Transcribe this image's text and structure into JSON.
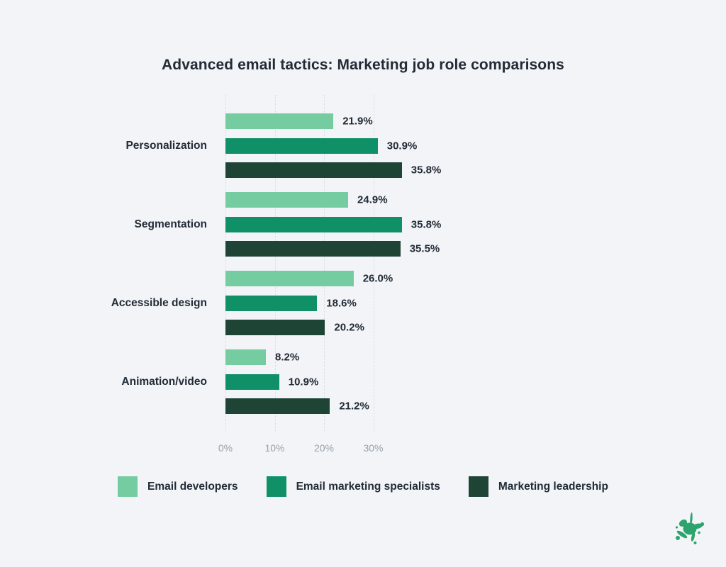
{
  "page": {
    "title": "Advanced email tactics: Marketing job role comparisons"
  },
  "chart_data": {
    "type": "bar",
    "orientation": "horizontal",
    "title": "Advanced email tactics: Marketing job role comparisons",
    "categories": [
      "Personalization",
      "Segmentation",
      "Accessible design",
      "Animation/video"
    ],
    "series": [
      {
        "name": "Email developers",
        "color": "#76cca1",
        "values": [
          21.9,
          24.9,
          26.0,
          8.2
        ]
      },
      {
        "name": "Email marketing specialists",
        "color": "#0f9066",
        "values": [
          30.9,
          35.8,
          18.6,
          10.9
        ]
      },
      {
        "name": "Marketing leadership",
        "color": "#1d4435",
        "values": [
          35.8,
          35.5,
          20.2,
          21.2
        ]
      }
    ],
    "value_labels": [
      [
        "21.9%",
        "30.9%",
        "35.8%"
      ],
      [
        "24.9%",
        "35.8%",
        "35.5%"
      ],
      [
        "26.0%",
        "18.6%",
        "20.2%"
      ],
      [
        "8.2%",
        "10.9%",
        "21.2%"
      ]
    ],
    "x_ticks": [
      {
        "value": 0,
        "label": "0%"
      },
      {
        "value": 10,
        "label": "10%"
      },
      {
        "value": 20,
        "label": "20%"
      },
      {
        "value": 30,
        "label": "30%"
      }
    ],
    "xlim": [
      0,
      40
    ],
    "grid": "dotted-vertical",
    "legend_position": "bottom",
    "legend_entries": [
      "Email developers",
      "Email marketing specialists",
      "Marketing leadership"
    ]
  },
  "colors": {
    "background": "#f2f4f7",
    "text_dark": "#222b37",
    "axis_text": "#99a1ac",
    "gridline": "#d6dae1",
    "logo_green": "#2ca46d"
  },
  "logo": {
    "name": "ink-splat-logo"
  }
}
